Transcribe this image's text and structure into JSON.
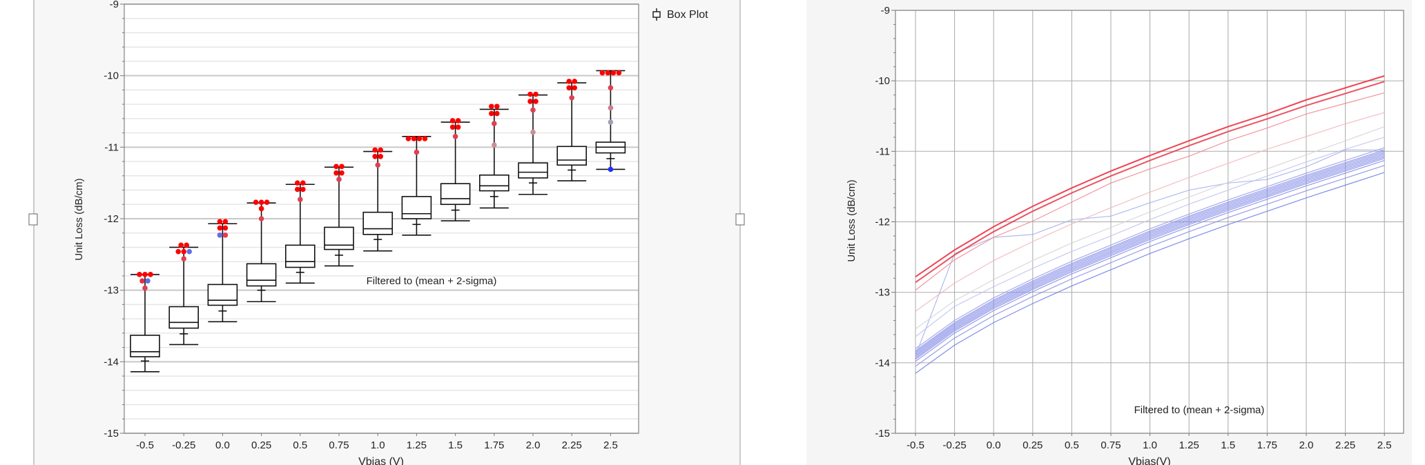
{
  "chart_data": [
    {
      "type": "box",
      "legend": {
        "label": "Box Plot",
        "icon": "box-plot-icon",
        "placement": "top-right"
      },
      "xlabel": "Vbias (V)",
      "ylabel": "Unit Loss (dB/cm)",
      "ylim": [
        -15,
        -9
      ],
      "yticks": [
        "-9",
        "-10",
        "-11",
        "-12",
        "-13",
        "-14",
        "-15"
      ],
      "grid": true,
      "annotation": "Filtered to (mean + 2-sigma)",
      "categories": [
        "-0.5",
        "-0.25",
        "0.0",
        "0.25",
        "0.5",
        "0.75",
        "1.0",
        "1.25",
        "1.5",
        "1.75",
        "2.0",
        "2.25",
        "2.5"
      ],
      "boxes": [
        {
          "max": -12.78,
          "q3": -13.63,
          "median": -13.86,
          "q1": -13.93,
          "marker": -13.99,
          "min": -14.14,
          "outliers": [
            [
              -12.78,
              "#ff0000"
            ],
            [
              -12.78,
              "#ff0000"
            ],
            [
              -12.78,
              "#ff0000"
            ],
            [
              -12.87,
              "#e03040"
            ],
            [
              -12.87,
              "#6070e0"
            ],
            [
              -12.97,
              "#e04050"
            ]
          ]
        },
        {
          "max": -12.4,
          "q3": -13.23,
          "median": -13.45,
          "q1": -13.53,
          "marker": -13.61,
          "min": -13.76,
          "outliers": [
            [
              -12.37,
              "#ff0000"
            ],
            [
              -12.37,
              "#ff0000"
            ],
            [
              -12.46,
              "#ff0000"
            ],
            [
              -12.46,
              "#ff0000"
            ],
            [
              -12.46,
              "#6070e0"
            ],
            [
              -12.56,
              "#e04050"
            ]
          ]
        },
        {
          "max": -12.07,
          "q3": -12.92,
          "median": -13.14,
          "q1": -13.21,
          "marker": -13.29,
          "min": -13.44,
          "outliers": [
            [
              -12.04,
              "#ff0000"
            ],
            [
              -12.04,
              "#ff0000"
            ],
            [
              -12.13,
              "#ff0000"
            ],
            [
              -12.13,
              "#ff0000"
            ],
            [
              -12.23,
              "#6070e0"
            ],
            [
              -12.23,
              "#e04050"
            ]
          ]
        },
        {
          "max": -11.78,
          "q3": -12.63,
          "median": -12.86,
          "q1": -12.94,
          "marker": -13.0,
          "min": -13.16,
          "outliers": [
            [
              -11.77,
              "#ff0000"
            ],
            [
              -11.77,
              "#ff0000"
            ],
            [
              -11.77,
              "#ff0000"
            ],
            [
              -11.86,
              "#ff0000"
            ],
            [
              -12.0,
              "#e04050"
            ]
          ]
        },
        {
          "max": -11.52,
          "q3": -12.37,
          "median": -12.6,
          "q1": -12.68,
          "marker": -12.75,
          "min": -12.9,
          "outliers": [
            [
              -11.5,
              "#ff0000"
            ],
            [
              -11.5,
              "#ff0000"
            ],
            [
              -11.59,
              "#ff0000"
            ],
            [
              -11.59,
              "#ff0000"
            ],
            [
              -11.73,
              "#e04050"
            ]
          ]
        },
        {
          "max": -11.28,
          "q3": -12.12,
          "median": -12.37,
          "q1": -12.43,
          "marker": -12.51,
          "min": -12.66,
          "outliers": [
            [
              -11.27,
              "#ff0000"
            ],
            [
              -11.27,
              "#ff0000"
            ],
            [
              -11.36,
              "#ff0000"
            ],
            [
              -11.36,
              "#ff0000"
            ],
            [
              -11.45,
              "#e04050"
            ]
          ]
        },
        {
          "max": -11.06,
          "q3": -11.91,
          "median": -12.14,
          "q1": -12.22,
          "marker": -12.29,
          "min": -12.45,
          "outliers": [
            [
              -11.04,
              "#ff0000"
            ],
            [
              -11.04,
              "#ff0000"
            ],
            [
              -11.13,
              "#ff0000"
            ],
            [
              -11.13,
              "#ff0000"
            ],
            [
              -11.25,
              "#e04050"
            ]
          ]
        },
        {
          "max": -10.85,
          "q3": -11.69,
          "median": -11.93,
          "q1": -12.0,
          "marker": -12.08,
          "min": -12.23,
          "outliers": [
            [
              -10.88,
              "#ff0000"
            ],
            [
              -10.88,
              "#ff0000"
            ],
            [
              -10.88,
              "#ff0000"
            ],
            [
              -10.88,
              "#ff0000"
            ],
            [
              -11.07,
              "#e04050"
            ]
          ]
        },
        {
          "max": -10.65,
          "q3": -11.51,
          "median": -11.72,
          "q1": -11.8,
          "marker": -11.88,
          "min": -12.03,
          "outliers": [
            [
              -10.63,
              "#ff0000"
            ],
            [
              -10.63,
              "#ff0000"
            ],
            [
              -10.72,
              "#ff0000"
            ],
            [
              -10.72,
              "#ff0000"
            ],
            [
              -10.85,
              "#e04050"
            ]
          ]
        },
        {
          "max": -10.47,
          "q3": -11.39,
          "median": -11.54,
          "q1": -11.61,
          "marker": -11.69,
          "min": -11.85,
          "outliers": [
            [
              -10.43,
              "#ff0000"
            ],
            [
              -10.43,
              "#ff0000"
            ],
            [
              -10.53,
              "#ff0000"
            ],
            [
              -10.53,
              "#ff0000"
            ],
            [
              -10.67,
              "#e04050"
            ],
            [
              -10.97,
              "#c89098"
            ]
          ]
        },
        {
          "max": -10.27,
          "q3": -11.22,
          "median": -11.35,
          "q1": -11.43,
          "marker": -11.5,
          "min": -11.66,
          "outliers": [
            [
              -10.26,
              "#ff0000"
            ],
            [
              -10.26,
              "#ff0000"
            ],
            [
              -10.36,
              "#ff0000"
            ],
            [
              -10.36,
              "#ff0000"
            ],
            [
              -10.48,
              "#e04050"
            ],
            [
              -10.79,
              "#c89098"
            ]
          ]
        },
        {
          "max": -10.1,
          "q3": -10.99,
          "median": -11.18,
          "q1": -11.25,
          "marker": -11.32,
          "min": -11.47,
          "outliers": [
            [
              -10.08,
              "#ff0000"
            ],
            [
              -10.08,
              "#ff0000"
            ],
            [
              -10.17,
              "#ff0000"
            ],
            [
              -10.17,
              "#ff0000"
            ],
            [
              -10.31,
              "#e04050"
            ]
          ]
        },
        {
          "max": -9.93,
          "q3": -10.93,
          "median": -11.0,
          "q1": -11.08,
          "marker": -11.16,
          "min": -11.31,
          "outliers": [
            [
              -9.96,
              "#ff0000"
            ],
            [
              -9.96,
              "#ff0000"
            ],
            [
              -9.96,
              "#ff0000"
            ],
            [
              -9.96,
              "#ff0000"
            ],
            [
              -10.17,
              "#e04050"
            ],
            [
              -10.45,
              "#c88090"
            ],
            [
              -10.65,
              "#a0a0b0"
            ],
            [
              -11.31,
              "#2030ff"
            ]
          ]
        }
      ]
    },
    {
      "type": "line",
      "xlabel": "Vbias(V)",
      "ylabel": "Unit Loss (dB/cm)",
      "ylim": [
        -15,
        -9
      ],
      "yticks": [
        "-9",
        "-10",
        "-11",
        "-12",
        "-13",
        "-14",
        "-15"
      ],
      "grid": true,
      "annotation": "Filtered to (mean + 2-sigma)",
      "x": [
        "-0.5",
        "-0.25",
        "0.0",
        "0.25",
        "0.5",
        "0.75",
        "1.0",
        "1.25",
        "1.5",
        "1.75",
        "2.0",
        "2.25",
        "2.5"
      ],
      "series": [
        {
          "color": "#9aa0e8",
          "values": [
            -13.8,
            -13.4,
            -13.08,
            -12.81,
            -12.56,
            -12.33,
            -12.1,
            -11.89,
            -11.69,
            -11.5,
            -11.31,
            -11.13,
            -10.95
          ]
        },
        {
          "color": "#8890e8",
          "values": [
            -13.83,
            -13.43,
            -13.11,
            -12.84,
            -12.59,
            -12.36,
            -12.13,
            -11.92,
            -11.72,
            -11.53,
            -11.34,
            -11.16,
            -10.98
          ]
        },
        {
          "color": "#8890e8",
          "values": [
            -13.85,
            -13.45,
            -13.13,
            -12.86,
            -12.61,
            -12.38,
            -12.15,
            -11.94,
            -11.74,
            -11.55,
            -11.36,
            -11.18,
            -11.0
          ]
        },
        {
          "color": "#8890e8",
          "values": [
            -13.87,
            -13.47,
            -13.15,
            -12.88,
            -12.63,
            -12.4,
            -12.17,
            -11.96,
            -11.76,
            -11.57,
            -11.38,
            -11.2,
            -11.02
          ]
        },
        {
          "color": "#8890e8",
          "values": [
            -13.89,
            -13.49,
            -13.17,
            -12.9,
            -12.65,
            -12.42,
            -12.19,
            -11.98,
            -11.78,
            -11.59,
            -11.4,
            -11.22,
            -11.04
          ]
        },
        {
          "color": "#8890e8",
          "values": [
            -13.91,
            -13.51,
            -13.19,
            -12.92,
            -12.67,
            -12.44,
            -12.21,
            -12.0,
            -11.8,
            -11.61,
            -11.42,
            -11.24,
            -11.06
          ]
        },
        {
          "color": "#8890e8",
          "values": [
            -13.93,
            -13.53,
            -13.21,
            -12.94,
            -12.69,
            -12.46,
            -12.23,
            -12.02,
            -11.82,
            -11.63,
            -11.44,
            -11.26,
            -11.08
          ]
        },
        {
          "color": "#8890e8",
          "values": [
            -13.95,
            -13.55,
            -13.23,
            -12.96,
            -12.71,
            -12.48,
            -12.25,
            -12.04,
            -11.84,
            -11.65,
            -11.46,
            -11.28,
            -11.1
          ]
        },
        {
          "color": "#8890e8",
          "values": [
            -13.98,
            -13.58,
            -13.26,
            -12.99,
            -12.74,
            -12.51,
            -12.28,
            -12.07,
            -11.87,
            -11.68,
            -11.49,
            -11.31,
            -11.13
          ]
        },
        {
          "color": "#8890e8",
          "values": [
            -14.05,
            -13.65,
            -13.33,
            -13.06,
            -12.81,
            -12.58,
            -12.35,
            -12.14,
            -11.94,
            -11.75,
            -11.56,
            -11.38,
            -11.2
          ]
        },
        {
          "color": "#7080e8",
          "values": [
            -14.15,
            -13.75,
            -13.43,
            -13.16,
            -12.91,
            -12.68,
            -12.45,
            -12.24,
            -12.04,
            -11.85,
            -11.66,
            -11.48,
            -11.3
          ]
        },
        {
          "color": "#a8b0f0",
          "values": [
            -13.9,
            -12.45,
            -12.22,
            -12.18,
            -11.97,
            -11.92,
            -11.73,
            -11.55,
            -11.45,
            -11.4,
            -11.22,
            -10.98,
            -10.98
          ]
        },
        {
          "color": "#c0c4f0",
          "values": [
            -13.63,
            -13.2,
            -12.92,
            -12.66,
            -12.42,
            -12.2,
            -11.97,
            -11.75,
            -11.55,
            -11.35,
            -11.15,
            -10.97,
            -10.8
          ]
        },
        {
          "color": "#d4d4dc",
          "values": [
            -13.52,
            -13.12,
            -12.82,
            -12.55,
            -12.3,
            -12.08,
            -11.86,
            -11.65,
            -11.44,
            -11.25,
            -11.05,
            -10.85,
            -10.65
          ]
        },
        {
          "color": "#efb8bc",
          "values": [
            -13.27,
            -12.87,
            -12.55,
            -12.28,
            -12.03,
            -11.8,
            -11.58,
            -11.37,
            -11.17,
            -10.97,
            -10.79,
            -10.61,
            -10.45
          ]
        },
        {
          "color": "#f08890",
          "values": [
            -12.97,
            -12.54,
            -12.22,
            -11.99,
            -11.72,
            -11.45,
            -11.25,
            -11.07,
            -10.85,
            -10.67,
            -10.47,
            -10.32,
            -10.17
          ]
        },
        {
          "color": "#e84050",
          "values": [
            -12.86,
            -12.47,
            -12.14,
            -11.85,
            -11.59,
            -11.35,
            -11.13,
            -10.92,
            -10.72,
            -10.54,
            -10.35,
            -10.18,
            -10.01
          ]
        },
        {
          "color": "#ee3040",
          "values": [
            -12.78,
            -12.4,
            -12.07,
            -11.78,
            -11.52,
            -11.28,
            -11.06,
            -10.85,
            -10.65,
            -10.47,
            -10.27,
            -10.1,
            -9.93
          ]
        }
      ]
    }
  ]
}
